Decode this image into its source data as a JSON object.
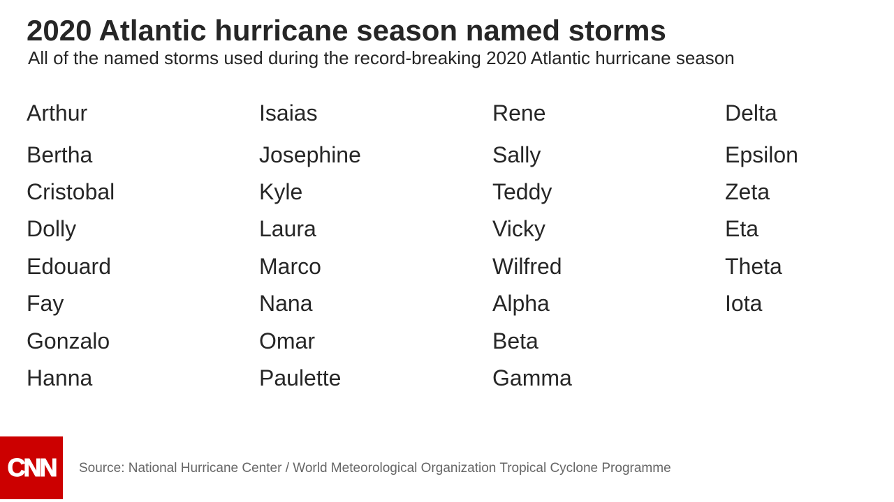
{
  "header": {
    "title": "2020  Atlantic hurricane season named storms",
    "subtitle": "All of the named storms used during the record-breaking 2020 Atlantic hurricane season"
  },
  "storms": {
    "columns": [
      [
        "Arthur",
        "Bertha",
        "Cristobal",
        "Dolly",
        "Edouard",
        "Fay",
        "Gonzalo",
        "Hanna"
      ],
      [
        "Isaias",
        "Josephine",
        "Kyle",
        "Laura",
        "Marco",
        "Nana",
        "Omar",
        "Paulette"
      ],
      [
        "Rene",
        "Sally",
        "Teddy",
        "Vicky",
        "Wilfred",
        "Alpha",
        "Beta",
        "Gamma"
      ],
      [
        "Delta",
        "Epsilon",
        "Zeta",
        "Eta",
        "Theta",
        "Iota"
      ]
    ]
  },
  "footer": {
    "logo_text": "CNN",
    "source": "Source: National Hurricane Center / World Meteorological Organization Tropical Cyclone Programme"
  },
  "colors": {
    "text": "#262626",
    "source_text": "#666666",
    "brand_red": "#cc0000"
  }
}
